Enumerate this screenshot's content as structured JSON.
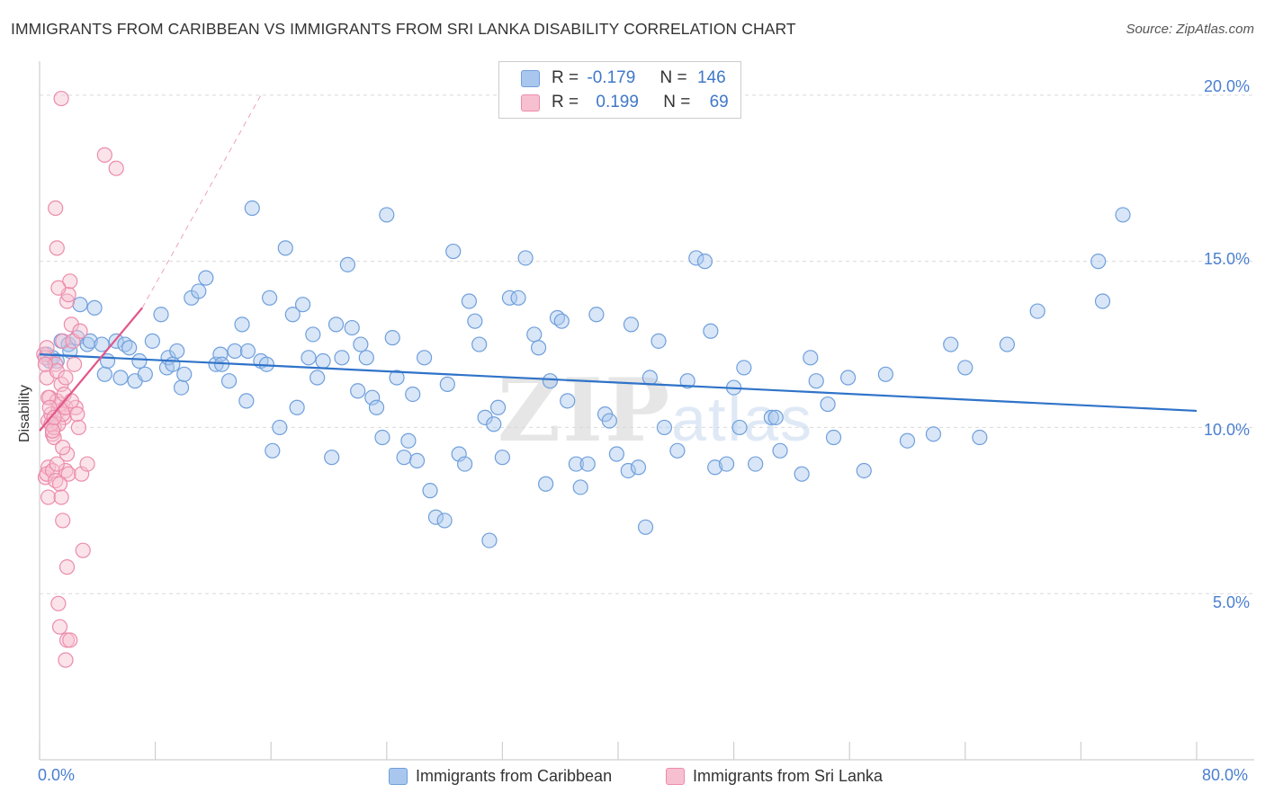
{
  "title": "IMMIGRANTS FROM CARIBBEAN VS IMMIGRANTS FROM SRI LANKA DISABILITY CORRELATION CHART",
  "source": "Source: ZipAtlas.com",
  "watermark": {
    "part1": "ZIP",
    "part2": "atlas"
  },
  "stats": {
    "rows": [
      {
        "r_label": "R =",
        "r_value": "-0.179",
        "n_label": "N =",
        "n_value": "146",
        "color": "#9fc0ea"
      },
      {
        "r_label": "R =",
        "r_value": "0.199",
        "n_label": "N =",
        "n_value": "69",
        "color": "#f5b8ca"
      }
    ]
  },
  "chart_data": {
    "type": "scatter",
    "xlabel": "",
    "ylabel": "Disability",
    "xlim": [
      0,
      80
    ],
    "ylim": [
      0,
      20.7
    ],
    "x_tick_labels": [
      "0.0%",
      "80.0%"
    ],
    "y_tick_labels": [
      "5.0%",
      "10.0%",
      "15.0%",
      "20.0%"
    ],
    "y_ticks": [
      5,
      10,
      15,
      20
    ],
    "legend": [
      "Immigrants from Caribbean",
      "Immigrants from Sri Lanka"
    ],
    "colors": {
      "blue_fill": "#a9c7ee",
      "blue_stroke": "#6f9fdc",
      "blue_line": "#2f73c9",
      "pink_fill": "#f7c0d0",
      "pink_stroke": "#ec8bab",
      "pink_line": "#e0578a"
    },
    "series": [
      {
        "name": "Immigrants from Caribbean",
        "trend": {
          "x": [
            0,
            80
          ],
          "y": [
            12.2,
            10.5
          ]
        },
        "points": [
          [
            0.5,
            12.2
          ],
          [
            0.7,
            12.0
          ],
          [
            0.9,
            12.1
          ],
          [
            1.2,
            12.0
          ],
          [
            1.5,
            12.6
          ],
          [
            2.0,
            12.5
          ],
          [
            2.1,
            12.3
          ],
          [
            2.6,
            12.7
          ],
          [
            2.8,
            13.7
          ],
          [
            3.3,
            12.5
          ],
          [
            3.5,
            12.6
          ],
          [
            3.8,
            13.6
          ],
          [
            4.3,
            12.5
          ],
          [
            4.5,
            11.6
          ],
          [
            4.7,
            12.0
          ],
          [
            5.3,
            12.6
          ],
          [
            5.6,
            11.5
          ],
          [
            5.9,
            12.5
          ],
          [
            6.2,
            12.4
          ],
          [
            6.6,
            11.4
          ],
          [
            6.9,
            12.0
          ],
          [
            7.3,
            11.6
          ],
          [
            7.8,
            12.6
          ],
          [
            8.4,
            13.4
          ],
          [
            8.8,
            11.8
          ],
          [
            8.9,
            12.1
          ],
          [
            9.2,
            11.9
          ],
          [
            9.5,
            12.3
          ],
          [
            9.8,
            11.2
          ],
          [
            10.0,
            11.6
          ],
          [
            10.5,
            13.9
          ],
          [
            11.0,
            14.1
          ],
          [
            11.5,
            14.5
          ],
          [
            12.2,
            11.9
          ],
          [
            12.5,
            12.2
          ],
          [
            12.6,
            11.9
          ],
          [
            13.1,
            11.4
          ],
          [
            13.5,
            12.3
          ],
          [
            14.0,
            13.1
          ],
          [
            14.3,
            10.8
          ],
          [
            14.4,
            12.3
          ],
          [
            14.7,
            16.6
          ],
          [
            15.3,
            12.0
          ],
          [
            15.7,
            11.9
          ],
          [
            15.9,
            13.9
          ],
          [
            16.1,
            9.3
          ],
          [
            16.6,
            10.0
          ],
          [
            17.0,
            15.4
          ],
          [
            17.5,
            13.4
          ],
          [
            17.8,
            10.6
          ],
          [
            18.2,
            13.7
          ],
          [
            18.6,
            12.1
          ],
          [
            18.9,
            12.8
          ],
          [
            19.2,
            11.5
          ],
          [
            19.6,
            12.0
          ],
          [
            20.2,
            9.1
          ],
          [
            20.5,
            13.1
          ],
          [
            20.9,
            12.1
          ],
          [
            21.3,
            14.9
          ],
          [
            21.6,
            13.0
          ],
          [
            22.0,
            11.1
          ],
          [
            22.2,
            12.5
          ],
          [
            22.6,
            12.1
          ],
          [
            23.0,
            10.9
          ],
          [
            23.3,
            10.6
          ],
          [
            23.7,
            9.7
          ],
          [
            24.0,
            16.4
          ],
          [
            24.4,
            12.7
          ],
          [
            24.7,
            11.5
          ],
          [
            25.2,
            9.1
          ],
          [
            25.5,
            9.6
          ],
          [
            25.8,
            11.0
          ],
          [
            26.1,
            9.0
          ],
          [
            26.6,
            12.1
          ],
          [
            27.0,
            8.1
          ],
          [
            27.4,
            7.3
          ],
          [
            28.0,
            7.2
          ],
          [
            28.2,
            11.3
          ],
          [
            28.6,
            15.3
          ],
          [
            29.0,
            9.2
          ],
          [
            29.4,
            8.9
          ],
          [
            29.7,
            13.8
          ],
          [
            30.1,
            13.2
          ],
          [
            30.4,
            12.5
          ],
          [
            30.8,
            10.3
          ],
          [
            31.1,
            6.6
          ],
          [
            31.4,
            10.1
          ],
          [
            31.7,
            10.6
          ],
          [
            32.0,
            9.1
          ],
          [
            32.5,
            13.9
          ],
          [
            33.1,
            13.9
          ],
          [
            33.6,
            15.1
          ],
          [
            34.2,
            12.8
          ],
          [
            34.5,
            12.4
          ],
          [
            35.0,
            8.3
          ],
          [
            35.3,
            11.4
          ],
          [
            35.8,
            13.3
          ],
          [
            36.1,
            13.2
          ],
          [
            36.5,
            10.8
          ],
          [
            37.1,
            8.9
          ],
          [
            37.4,
            8.2
          ],
          [
            37.9,
            8.9
          ],
          [
            38.5,
            13.4
          ],
          [
            39.1,
            10.4
          ],
          [
            39.4,
            10.2
          ],
          [
            39.9,
            9.2
          ],
          [
            40.7,
            8.7
          ],
          [
            40.9,
            13.1
          ],
          [
            41.4,
            8.8
          ],
          [
            41.9,
            7.0
          ],
          [
            42.2,
            11.5
          ],
          [
            42.8,
            12.6
          ],
          [
            43.2,
            10.0
          ],
          [
            44.1,
            9.3
          ],
          [
            44.8,
            11.4
          ],
          [
            45.4,
            15.1
          ],
          [
            46.0,
            15.0
          ],
          [
            46.4,
            12.9
          ],
          [
            46.7,
            8.8
          ],
          [
            47.5,
            8.9
          ],
          [
            48.0,
            11.2
          ],
          [
            48.4,
            10.0
          ],
          [
            48.7,
            11.8
          ],
          [
            49.5,
            8.9
          ],
          [
            50.6,
            10.3
          ],
          [
            50.9,
            10.3
          ],
          [
            51.2,
            9.3
          ],
          [
            52.7,
            8.6
          ],
          [
            53.3,
            12.1
          ],
          [
            53.7,
            11.4
          ],
          [
            54.5,
            10.7
          ],
          [
            54.9,
            9.7
          ],
          [
            55.9,
            11.5
          ],
          [
            57.0,
            8.7
          ],
          [
            58.5,
            11.6
          ],
          [
            60.0,
            9.6
          ],
          [
            61.8,
            9.8
          ],
          [
            63.0,
            12.5
          ],
          [
            64.0,
            11.8
          ],
          [
            65.0,
            9.7
          ],
          [
            66.9,
            12.5
          ],
          [
            69.0,
            13.5
          ],
          [
            73.2,
            15.0
          ],
          [
            73.5,
            13.8
          ],
          [
            74.9,
            16.4
          ]
        ]
      },
      {
        "name": "Immigrants from Sri Lanka",
        "trend": {
          "x": [
            0,
            7.1
          ],
          "y": [
            9.9,
            13.6
          ],
          "extend_x": 15.3,
          "extend_y": 20.0
        },
        "points": [
          [
            0.3,
            12.2
          ],
          [
            0.4,
            12.1
          ],
          [
            0.5,
            11.5
          ],
          [
            0.6,
            10.2
          ],
          [
            0.7,
            10.9
          ],
          [
            0.8,
            10.4
          ],
          [
            0.9,
            9.8
          ],
          [
            1.0,
            9.7
          ],
          [
            1.1,
            11.9
          ],
          [
            1.2,
            11.7
          ],
          [
            1.3,
            10.5
          ],
          [
            1.4,
            10.7
          ],
          [
            1.5,
            11.3
          ],
          [
            1.6,
            12.6
          ],
          [
            1.7,
            10.3
          ],
          [
            1.8,
            8.7
          ],
          [
            1.9,
            9.2
          ],
          [
            2.0,
            8.6
          ],
          [
            0.4,
            8.5
          ],
          [
            0.6,
            8.8
          ],
          [
            0.5,
            8.6
          ],
          [
            0.6,
            7.9
          ],
          [
            0.9,
            8.7
          ],
          [
            1.1,
            8.4
          ],
          [
            1.2,
            8.9
          ],
          [
            1.4,
            8.3
          ],
          [
            1.5,
            7.9
          ],
          [
            1.6,
            9.4
          ],
          [
            1.0,
            10.0
          ],
          [
            1.2,
            10.8
          ],
          [
            1.3,
            10.1
          ],
          [
            1.6,
            10.4
          ],
          [
            1.7,
            11.0
          ],
          [
            1.8,
            10.6
          ],
          [
            1.9,
            13.8
          ],
          [
            2.0,
            14.0
          ],
          [
            2.1,
            14.4
          ],
          [
            2.2,
            13.1
          ],
          [
            2.4,
            11.9
          ],
          [
            2.5,
            10.6
          ],
          [
            2.6,
            10.4
          ],
          [
            2.7,
            10.0
          ],
          [
            2.9,
            8.6
          ],
          [
            3.0,
            6.3
          ],
          [
            3.3,
            8.9
          ],
          [
            1.1,
            16.6
          ],
          [
            1.2,
            15.4
          ],
          [
            1.3,
            14.2
          ],
          [
            1.6,
            7.2
          ],
          [
            1.9,
            5.8
          ],
          [
            1.3,
            4.7
          ],
          [
            1.4,
            4.0
          ],
          [
            1.9,
            3.6
          ],
          [
            2.1,
            3.6
          ],
          [
            1.8,
            3.0
          ],
          [
            4.5,
            18.2
          ],
          [
            5.3,
            17.8
          ],
          [
            1.5,
            19.9
          ],
          [
            0.6,
            10.9
          ],
          [
            0.7,
            10.6
          ],
          [
            0.8,
            10.1
          ],
          [
            0.9,
            9.9
          ],
          [
            1.0,
            10.3
          ],
          [
            2.3,
            12.6
          ],
          [
            2.8,
            12.9
          ],
          [
            0.4,
            11.9
          ],
          [
            0.5,
            12.4
          ],
          [
            1.8,
            11.5
          ],
          [
            2.2,
            10.8
          ]
        ]
      }
    ]
  },
  "legend": {
    "items": [
      {
        "label": "Immigrants from Caribbean",
        "color": "#a9c7ee"
      },
      {
        "label": "Immigrants from Sri Lanka",
        "color": "#f7c0d0"
      }
    ]
  }
}
